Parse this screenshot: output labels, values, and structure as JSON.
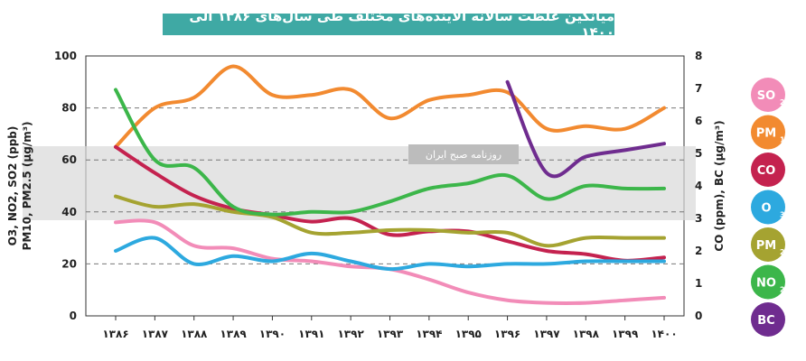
{
  "chart_data": {
    "type": "line",
    "title": "میانگین غلظت سالانه آلاینده‌های مختلف طی سال‌های ۱۳۸۶ الی ۱۴۰۰",
    "watermark": "روزنامه صبح ایران",
    "x": [
      "۱۳۸۶",
      "۱۳۸۷",
      "۱۳۸۸",
      "۱۳۸۹",
      "۱۳۹۰",
      "۱۳۹۱",
      "۱۳۹۲",
      "۱۳۹۳",
      "۱۳۹۴",
      "۱۳۹۵",
      "۱۳۹۶",
      "۱۳۹۷",
      "۱۳۹۸",
      "۱۳۹۹",
      "۱۴۰۰"
    ],
    "ylabel_left_line1": "O3, NO2, SO2 (ppb)",
    "ylabel_left_line2": "PM10, PM2.5 (µg/m³)",
    "ylabel_right": "CO (ppm), BC (µg/m³)",
    "ylim_left": [
      0,
      100
    ],
    "yticks_left": [
      "0",
      "20",
      "40",
      "60",
      "80",
      "100"
    ],
    "ylim_right": [
      0,
      8
    ],
    "yticks_right": [
      "0",
      "1",
      "2",
      "3",
      "4",
      "5",
      "6",
      "7",
      "8"
    ],
    "series": [
      {
        "name": "SO2",
        "color": "#f28cb8",
        "axis": "left",
        "values": [
          36,
          36,
          27,
          26,
          22,
          21,
          19,
          18,
          14,
          9,
          6,
          5,
          5,
          6,
          7
        ]
      },
      {
        "name": "PM10",
        "color": "#f28a30",
        "axis": "left",
        "values": [
          65,
          80,
          84,
          96,
          85,
          85,
          87,
          76,
          83,
          85,
          86,
          72,
          73,
          72,
          80
        ]
      },
      {
        "name": "CO",
        "color": "#c4224f",
        "axis": "right",
        "values": [
          5.2,
          4.4,
          3.7,
          3.3,
          3.1,
          2.9,
          3.0,
          2.5,
          2.6,
          2.6,
          2.3,
          2.0,
          1.9,
          1.7,
          1.8
        ]
      },
      {
        "name": "O3",
        "color": "#2da9df",
        "axis": "left",
        "values": [
          25,
          30,
          20,
          23,
          21,
          24,
          21,
          18,
          20,
          19,
          20,
          20,
          21,
          21,
          21
        ]
      },
      {
        "name": "PM2.5",
        "color": "#a5a331",
        "axis": "left",
        "values": [
          46,
          42,
          43,
          40,
          38,
          32,
          32,
          33,
          33,
          32,
          32,
          27,
          30,
          30,
          30
        ]
      },
      {
        "name": "NO2",
        "color": "#3cb64a",
        "axis": "left",
        "values": [
          87,
          60,
          57,
          42,
          39,
          40,
          40,
          44,
          49,
          51,
          54,
          45,
          50,
          49,
          49
        ]
      },
      {
        "name": "BC",
        "color": "#6f2c8f",
        "axis": "right",
        "values": [
          null,
          null,
          null,
          null,
          null,
          null,
          null,
          null,
          null,
          null,
          7.2,
          4.4,
          4.9,
          5.1,
          5.3
        ]
      }
    ],
    "legend_position": "right",
    "grid": "dashed horizontal"
  },
  "legend": [
    {
      "label": "SO",
      "sub": "2",
      "color": "#f28cb8"
    },
    {
      "label": "PM",
      "sub": "10",
      "color": "#f28a30"
    },
    {
      "label": "CO",
      "sub": "",
      "color": "#c4224f"
    },
    {
      "label": "O",
      "sub": "3",
      "color": "#2da9df"
    },
    {
      "label": "PM",
      "sub": "2.5",
      "color": "#a5a331"
    },
    {
      "label": "NO",
      "sub": "2",
      "color": "#3cb64a"
    },
    {
      "label": "BC",
      "sub": "",
      "color": "#6f2c8f"
    }
  ]
}
